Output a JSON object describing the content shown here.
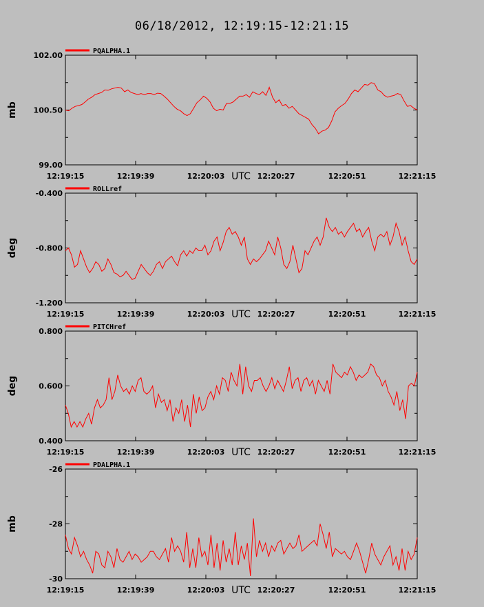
{
  "title": "06/18/2012, 12:19:15-12:21:15",
  "colors": {
    "background": "#bebebe",
    "series": "#ff0000",
    "axis": "#000000"
  },
  "chart_data": [
    {
      "type": "line",
      "series_name": "PQALPHA.1",
      "ylabel": "mb",
      "xlabel": "UTC",
      "ylim": [
        99.0,
        102.0
      ],
      "yticks": [
        99.0,
        100.5,
        102.0
      ],
      "ytick_labels": [
        "99.00",
        "100.50",
        "102.00"
      ],
      "xtick_labels": [
        "12:19:15",
        "12:19:39",
        "12:20:03",
        "12:20:27",
        "12:20:51",
        "12:21:15"
      ],
      "values": [
        100.5,
        100.48,
        100.55,
        100.6,
        100.62,
        100.65,
        100.72,
        100.8,
        100.85,
        100.92,
        100.95,
        100.98,
        101.05,
        101.04,
        101.08,
        101.1,
        101.12,
        101.1,
        101.0,
        101.05,
        100.98,
        100.95,
        100.92,
        100.95,
        100.92,
        100.95,
        100.95,
        100.92,
        100.96,
        100.95,
        100.88,
        100.8,
        100.7,
        100.6,
        100.52,
        100.48,
        100.4,
        100.35,
        100.4,
        100.55,
        100.7,
        100.78,
        100.88,
        100.82,
        100.72,
        100.55,
        100.48,
        100.52,
        100.5,
        100.68,
        100.68,
        100.72,
        100.8,
        100.88,
        100.88,
        100.92,
        100.85,
        101.0,
        100.95,
        100.92,
        101.0,
        100.9,
        101.12,
        100.85,
        100.7,
        100.78,
        100.62,
        100.65,
        100.55,
        100.6,
        100.5,
        100.4,
        100.35,
        100.3,
        100.25,
        100.1,
        100.0,
        99.85,
        99.92,
        99.95,
        100.02,
        100.2,
        100.45,
        100.55,
        100.62,
        100.68,
        100.8,
        100.95,
        101.05,
        101.0,
        101.1,
        101.2,
        101.18,
        101.25,
        101.22,
        101.05,
        101.0,
        100.9,
        100.85,
        100.88,
        100.9,
        100.95,
        100.92,
        100.75,
        100.6,
        100.62,
        100.55,
        100.5
      ]
    },
    {
      "type": "line",
      "series_name": "ROLLref",
      "ylabel": "deg",
      "xlabel": "UTC",
      "ylim": [
        -1.2,
        -0.4
      ],
      "yticks": [
        -1.2,
        -0.8,
        -0.4
      ],
      "ytick_labels": [
        "-1.200",
        "-0.800",
        "-0.400"
      ],
      "xtick_labels": [
        "12:19:15",
        "12:19:39",
        "12:20:03",
        "12:20:27",
        "12:20:51",
        "12:21:15"
      ],
      "values": [
        -0.82,
        -0.8,
        -0.85,
        -0.94,
        -0.92,
        -0.82,
        -0.88,
        -0.94,
        -0.98,
        -0.95,
        -0.9,
        -0.92,
        -0.97,
        -0.95,
        -0.88,
        -0.92,
        -0.98,
        -0.99,
        -1.01,
        -1.0,
        -0.97,
        -1.0,
        -1.03,
        -1.02,
        -0.97,
        -0.92,
        -0.95,
        -0.98,
        -1.0,
        -0.97,
        -0.92,
        -0.9,
        -0.95,
        -0.9,
        -0.88,
        -0.86,
        -0.9,
        -0.93,
        -0.85,
        -0.82,
        -0.86,
        -0.82,
        -0.84,
        -0.8,
        -0.82,
        -0.82,
        -0.78,
        -0.85,
        -0.82,
        -0.75,
        -0.72,
        -0.82,
        -0.76,
        -0.68,
        -0.65,
        -0.7,
        -0.68,
        -0.72,
        -0.78,
        -0.72,
        -0.88,
        -0.92,
        -0.88,
        -0.9,
        -0.88,
        -0.85,
        -0.82,
        -0.75,
        -0.8,
        -0.85,
        -0.72,
        -0.8,
        -0.92,
        -0.95,
        -0.9,
        -0.78,
        -0.88,
        -0.98,
        -0.95,
        -0.82,
        -0.85,
        -0.8,
        -0.75,
        -0.72,
        -0.78,
        -0.72,
        -0.58,
        -0.65,
        -0.68,
        -0.65,
        -0.7,
        -0.68,
        -0.72,
        -0.68,
        -0.65,
        -0.62,
        -0.68,
        -0.66,
        -0.72,
        -0.68,
        -0.65,
        -0.75,
        -0.82,
        -0.72,
        -0.7,
        -0.72,
        -0.68,
        -0.78,
        -0.72,
        -0.62,
        -0.68,
        -0.78,
        -0.72,
        -0.82,
        -0.9,
        -0.92,
        -0.88
      ]
    },
    {
      "type": "line",
      "series_name": "PITCHref",
      "ylabel": "deg",
      "xlabel": "UTC",
      "ylim": [
        0.4,
        0.8
      ],
      "yticks": [
        0.4,
        0.6,
        0.8
      ],
      "ytick_labels": [
        "0.400",
        "0.600",
        "0.800"
      ],
      "xtick_labels": [
        "12:19:15",
        "12:19:39",
        "12:20:03",
        "12:20:27",
        "12:20:51",
        "12:21:15"
      ],
      "values": [
        0.53,
        0.5,
        0.45,
        0.47,
        0.45,
        0.47,
        0.45,
        0.48,
        0.5,
        0.46,
        0.52,
        0.55,
        0.52,
        0.53,
        0.55,
        0.63,
        0.55,
        0.58,
        0.64,
        0.6,
        0.58,
        0.59,
        0.57,
        0.6,
        0.58,
        0.62,
        0.63,
        0.58,
        0.57,
        0.58,
        0.6,
        0.52,
        0.57,
        0.54,
        0.55,
        0.51,
        0.55,
        0.47,
        0.52,
        0.5,
        0.55,
        0.47,
        0.53,
        0.45,
        0.57,
        0.5,
        0.56,
        0.51,
        0.52,
        0.56,
        0.58,
        0.55,
        0.6,
        0.57,
        0.63,
        0.62,
        0.58,
        0.65,
        0.62,
        0.6,
        0.68,
        0.57,
        0.67,
        0.6,
        0.58,
        0.62,
        0.62,
        0.63,
        0.6,
        0.58,
        0.6,
        0.63,
        0.59,
        0.62,
        0.6,
        0.58,
        0.62,
        0.67,
        0.59,
        0.62,
        0.63,
        0.58,
        0.62,
        0.63,
        0.6,
        0.62,
        0.57,
        0.62,
        0.6,
        0.58,
        0.62,
        0.57,
        0.68,
        0.65,
        0.64,
        0.63,
        0.65,
        0.64,
        0.67,
        0.65,
        0.62,
        0.64,
        0.63,
        0.64,
        0.65,
        0.68,
        0.67,
        0.64,
        0.63,
        0.6,
        0.62,
        0.58,
        0.56,
        0.53,
        0.58,
        0.51,
        0.55,
        0.48,
        0.6,
        0.61,
        0.6,
        0.65
      ]
    },
    {
      "type": "line",
      "series_name": "PDALPHA.1",
      "ylabel": "mb",
      "xlabel": "UTC",
      "ylim": [
        -30,
        -26
      ],
      "yticks": [
        -30,
        -28,
        -26
      ],
      "ytick_labels": [
        "-30",
        "-28",
        "-26"
      ],
      "xtick_labels": [
        "12:19:15",
        "12:19:39",
        "12:20:03",
        "12:20:27",
        "12:20:51",
        "12:21:15"
      ],
      "values": [
        -28.4,
        -28.9,
        -29.1,
        -28.5,
        -28.8,
        -29.2,
        -29.0,
        -29.3,
        -29.5,
        -29.8,
        -29.0,
        -29.1,
        -29.5,
        -29.6,
        -29.0,
        -29.2,
        -29.6,
        -28.9,
        -29.3,
        -29.4,
        -29.2,
        -29.0,
        -29.3,
        -29.1,
        -29.2,
        -29.4,
        -29.3,
        -29.2,
        -29.0,
        -29.0,
        -29.2,
        -29.3,
        -29.1,
        -28.9,
        -29.4,
        -28.5,
        -29.0,
        -28.8,
        -29.0,
        -29.4,
        -28.3,
        -29.6,
        -28.9,
        -29.6,
        -28.5,
        -29.2,
        -29.0,
        -29.5,
        -28.4,
        -29.6,
        -28.7,
        -29.7,
        -28.6,
        -29.4,
        -28.9,
        -29.5,
        -28.3,
        -29.5,
        -28.8,
        -29.3,
        -28.7,
        -29.9,
        -27.8,
        -29.2,
        -28.6,
        -29.0,
        -28.7,
        -29.2,
        -28.8,
        -29.0,
        -28.7,
        -28.6,
        -29.1,
        -28.9,
        -28.7,
        -28.9,
        -28.8,
        -28.4,
        -29.0,
        -28.9,
        -28.8,
        -28.7,
        -28.6,
        -28.8,
        -28.0,
        -28.4,
        -28.9,
        -28.3,
        -29.2,
        -28.9,
        -29.0,
        -29.1,
        -29.0,
        -29.2,
        -29.3,
        -29.0,
        -28.7,
        -29.0,
        -29.4,
        -29.8,
        -29.3,
        -28.7,
        -29.1,
        -29.3,
        -29.5,
        -29.2,
        -29.0,
        -28.8,
        -29.5,
        -29.2,
        -29.7,
        -28.9,
        -29.7,
        -29.0,
        -29.3,
        -29.1,
        -28.5
      ]
    }
  ]
}
